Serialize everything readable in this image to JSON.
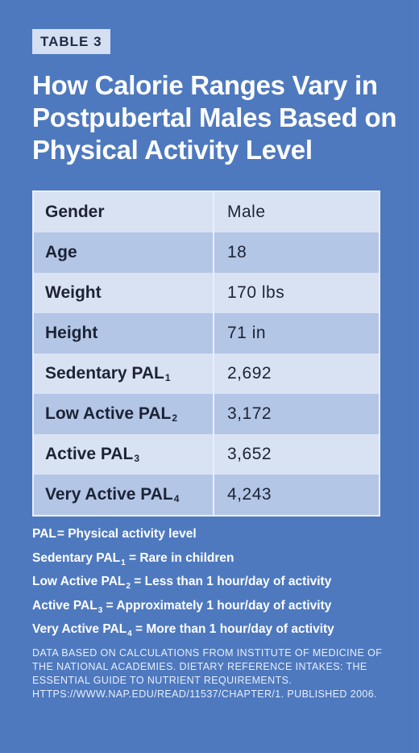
{
  "badge": "TABLE 3",
  "title": "How Calorie Ranges Vary in Postpubertal Males Based on Physical Activity Level",
  "table": {
    "rows": [
      {
        "label": "Gender",
        "sub": "",
        "value": "Male"
      },
      {
        "label": "Age",
        "sub": "",
        "value": "18"
      },
      {
        "label": "Weight",
        "sub": "",
        "value": "170 lbs"
      },
      {
        "label": "Height",
        "sub": "",
        "value": "71 in"
      },
      {
        "label": "Sedentary PAL",
        "sub": "1",
        "value": "2,692"
      },
      {
        "label": "Low Active PAL",
        "sub": "2",
        "value": "3,172"
      },
      {
        "label": "Active PAL",
        "sub": "3",
        "value": "3,652"
      },
      {
        "label": "Very Active PAL",
        "sub": "4",
        "value": "4,243"
      }
    ]
  },
  "notes": [
    {
      "term": "PAL",
      "sub": "",
      "definition": "= Physical activity level"
    },
    {
      "term": "Sedentary PAL",
      "sub": "1",
      "definition": " = Rare in children"
    },
    {
      "term": "Low Active PAL",
      "sub": "2",
      "definition": " = Less than 1 hour/day of activity"
    },
    {
      "term": "Active PAL",
      "sub": "3",
      "definition": " = Approximately 1 hour/day of activity"
    },
    {
      "term": "Very Active PAL",
      "sub": "4",
      "definition": " = More than 1 hour/day of activity"
    }
  ],
  "source": "DATA BASED ON CALCULATIONS FROM INSTITUTE OF MEDICINE OF THE NATIONAL ACADEMIES. DIETARY REFERENCE INTAKES: THE ESSENTIAL GUIDE TO NUTRIENT REQUIREMENTS. HTTPS://WWW.NAP.EDU/READ/11537/CHAPTER/1. PUBLISHED 2006.",
  "colors": {
    "background": "#4e79bf",
    "row_light": "#d9e2f3",
    "row_dark": "#b4c6e6"
  }
}
